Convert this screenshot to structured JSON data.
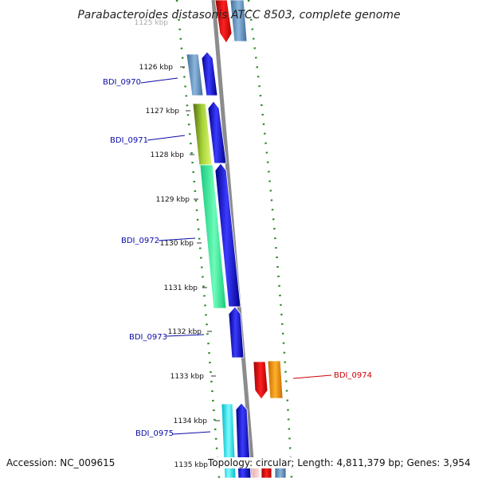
{
  "title": "Parabacteroides distasonis ATCC 8503, complete genome",
  "ruler": [
    "1125 kbp",
    "1126 kbp",
    "1127 kbp",
    "1128 kbp",
    "1129 kbp",
    "1130 kbp",
    "1131 kbp",
    "1132 kbp",
    "1133 kbp",
    "1134 kbp",
    "1135 kbp"
  ],
  "genes": [
    {
      "label": "BDI_0970",
      "color": "#0a0aa8"
    },
    {
      "label": "BDI_0971",
      "color": "#0a0aa8"
    },
    {
      "label": "BDI_0972",
      "color": "#0a0aa8"
    },
    {
      "label": "BDI_0973",
      "color": "#0a0aa8"
    },
    {
      "label": "BDI_0974",
      "color": "#cc0000"
    },
    {
      "label": "BDI_0975",
      "color": "#0a0aa8"
    }
  ],
  "accession": "Accession: NC_009615",
  "summary": "Topology: circular; Length: 4,811,379 bp; Genes: 3,954"
}
